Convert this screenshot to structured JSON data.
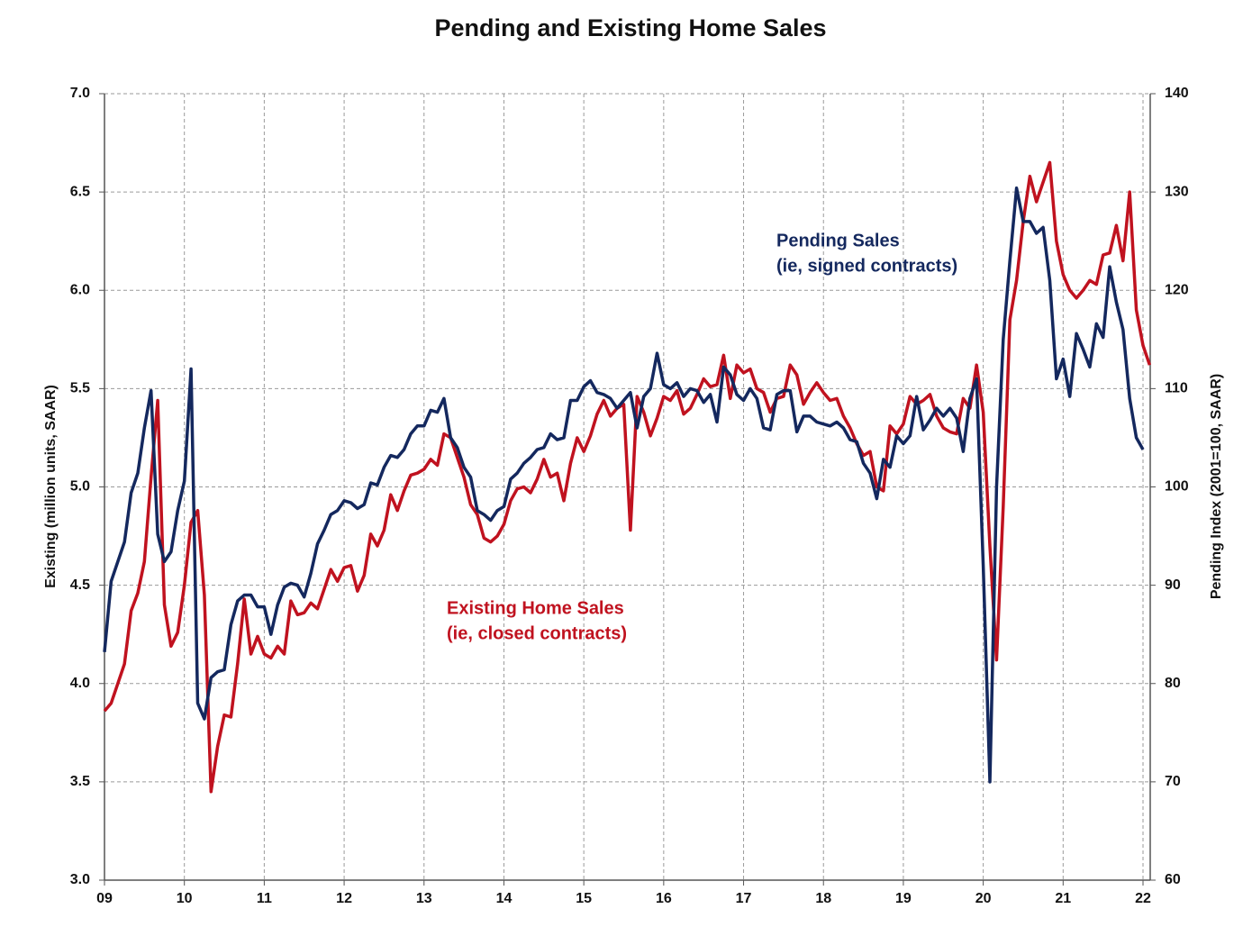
{
  "chart_data": {
    "type": "line",
    "title": "Pending and Existing Home Sales",
    "y_label": "Existing (million units, SAAR)",
    "y2_label": "Pending Index (2001=100, SAAR)",
    "annotations": [
      {
        "lines": [
          "Pending Sales",
          "(ie, signed contracts)"
        ],
        "series": 1
      },
      {
        "lines": [
          "Existing Home Sales",
          "(ie, closed contracts)"
        ],
        "series": 0
      }
    ],
    "categories": [
      "09",
      null,
      null,
      null,
      null,
      null,
      null,
      null,
      null,
      null,
      null,
      null,
      "10",
      null,
      null,
      null,
      null,
      null,
      null,
      null,
      null,
      null,
      null,
      null,
      "11",
      null,
      null,
      null,
      null,
      null,
      null,
      null,
      null,
      null,
      null,
      null,
      "12",
      null,
      null,
      null,
      null,
      null,
      null,
      null,
      null,
      null,
      null,
      null,
      "13",
      null,
      null,
      null,
      null,
      null,
      null,
      null,
      null,
      null,
      null,
      null,
      "14",
      null,
      null,
      null,
      null,
      null,
      null,
      null,
      null,
      null,
      null,
      null,
      "15",
      null,
      null,
      null,
      null,
      null,
      null,
      null,
      null,
      null,
      null,
      null,
      "16",
      null,
      null,
      null,
      null,
      null,
      null,
      null,
      null,
      null,
      null,
      null,
      "17",
      null,
      null,
      null,
      null,
      null,
      null,
      null,
      null,
      null,
      null,
      null,
      "18",
      null,
      null,
      null,
      null,
      null,
      null,
      null,
      null,
      null,
      null,
      null,
      "19",
      null,
      null,
      null,
      null,
      null,
      null,
      null,
      null,
      null,
      null,
      null,
      "20",
      null,
      null,
      null,
      null,
      null,
      null,
      null,
      null,
      null,
      null,
      null,
      "21",
      null,
      null,
      null,
      null,
      null,
      null,
      null,
      null,
      null,
      null,
      null,
      "22",
      null
    ],
    "series": [
      {
        "name": "Existing Home Sales",
        "color": "#c0121f",
        "values": [
          3.86,
          3.9,
          4.0,
          4.1,
          4.37,
          4.46,
          4.62,
          5.05,
          5.44,
          4.4,
          4.19,
          4.26,
          4.5,
          4.82,
          4.88,
          4.45,
          3.45,
          3.68,
          3.84,
          3.83,
          4.1,
          4.43,
          4.15,
          4.24,
          4.15,
          4.13,
          4.19,
          4.15,
          4.42,
          4.35,
          4.36,
          4.41,
          4.38,
          4.48,
          4.58,
          4.52,
          4.59,
          4.6,
          4.47,
          4.55,
          4.76,
          4.7,
          4.78,
          4.96,
          4.88,
          4.98,
          5.06,
          5.07,
          5.09,
          5.14,
          5.11,
          5.27,
          5.25,
          5.15,
          5.05,
          4.91,
          4.86,
          4.74,
          4.72,
          4.75,
          4.81,
          4.93,
          4.99,
          5.0,
          4.97,
          5.04,
          5.14,
          5.05,
          5.07,
          4.93,
          5.12,
          5.25,
          5.18,
          5.26,
          5.37,
          5.44,
          5.36,
          5.4,
          5.42,
          4.78,
          5.46,
          5.38,
          5.26,
          5.35,
          5.46,
          5.44,
          5.49,
          5.37,
          5.4,
          5.47,
          5.55,
          5.51,
          5.52,
          5.67,
          5.45,
          5.62,
          5.58,
          5.6,
          5.5,
          5.48,
          5.38,
          5.45,
          5.46,
          5.62,
          5.57,
          5.42,
          5.48,
          5.53,
          5.48,
          5.44,
          5.45,
          5.36,
          5.3,
          5.22,
          5.16,
          5.18,
          5.0,
          4.98,
          5.31,
          5.27,
          5.32,
          5.46,
          5.42,
          5.44,
          5.47,
          5.36,
          5.3,
          5.28,
          5.27,
          5.45,
          5.4,
          5.62,
          5.38,
          4.7,
          4.12,
          4.9,
          5.85,
          6.05,
          6.35,
          6.58,
          6.45,
          6.55,
          6.65,
          6.25,
          6.08,
          6.0,
          5.96,
          6.0,
          6.05,
          6.03,
          6.18,
          6.19,
          6.33,
          6.15,
          6.5,
          5.9,
          5.72,
          5.62
        ]
      },
      {
        "name": "Pending Sales",
        "color": "#14285e",
        "axis": "y2",
        "values": [
          83.2,
          90.4,
          92.4,
          94.4,
          99.4,
          101.4,
          106.0,
          109.8,
          95.2,
          92.4,
          93.4,
          97.6,
          100.6,
          112.0,
          78.0,
          76.4,
          80.6,
          81.2,
          81.4,
          86.0,
          88.4,
          89.0,
          89.0,
          87.8,
          87.8,
          85.0,
          88.0,
          89.8,
          90.2,
          90.0,
          88.8,
          91.2,
          94.2,
          95.6,
          97.2,
          97.6,
          98.6,
          98.4,
          97.8,
          98.2,
          100.4,
          100.2,
          102.0,
          103.2,
          103.0,
          103.8,
          105.4,
          106.2,
          106.2,
          107.8,
          107.6,
          109.0,
          105.0,
          104.0,
          102.0,
          101.0,
          97.6,
          97.2,
          96.6,
          97.6,
          98.0,
          100.8,
          101.4,
          102.4,
          103.0,
          103.8,
          104.0,
          105.4,
          104.8,
          105.0,
          108.8,
          108.8,
          110.2,
          110.8,
          109.6,
          109.4,
          109.0,
          108.0,
          108.8,
          109.6,
          106.0,
          109.2,
          110.0,
          113.6,
          110.4,
          110.0,
          110.6,
          109.2,
          110.0,
          109.8,
          108.6,
          109.4,
          106.6,
          112.2,
          111.4,
          109.4,
          108.8,
          110.0,
          109.0,
          106.0,
          105.8,
          109.4,
          109.8,
          109.8,
          105.6,
          107.2,
          107.2,
          106.6,
          106.4,
          106.2,
          106.6,
          106.0,
          104.8,
          104.6,
          102.4,
          101.4,
          98.8,
          102.8,
          102.0,
          105.2,
          104.4,
          105.2,
          109.2,
          105.8,
          106.8,
          108.0,
          107.2,
          108.0,
          107.0,
          103.6,
          109.0,
          111.0,
          92.0,
          70.0,
          100.0,
          115.0,
          123.0,
          130.4,
          127.0,
          127.0,
          125.8,
          126.4,
          121.0,
          111.0,
          113.0,
          109.2,
          115.6,
          114.0,
          112.2,
          116.6,
          115.2,
          122.4,
          118.8,
          116.0,
          109.0,
          105.0,
          103.8,
          null
        ]
      }
    ],
    "ylim": [
      3,
      7
    ],
    "yticks": [
      {
        "value": 3,
        "label": "3.0"
      },
      3.5,
      {
        "value": 4,
        "label": "4.0"
      },
      4.5,
      {
        "value": 5,
        "label": "5.0"
      },
      5.5,
      {
        "value": 6,
        "label": "6.0"
      },
      6.5,
      {
        "value": 7,
        "label": "7.0"
      }
    ],
    "y2lim": [
      60,
      140
    ],
    "y2ticks": [
      60,
      70,
      80,
      90,
      100,
      110,
      120,
      130,
      140
    ],
    "grid": true
  }
}
